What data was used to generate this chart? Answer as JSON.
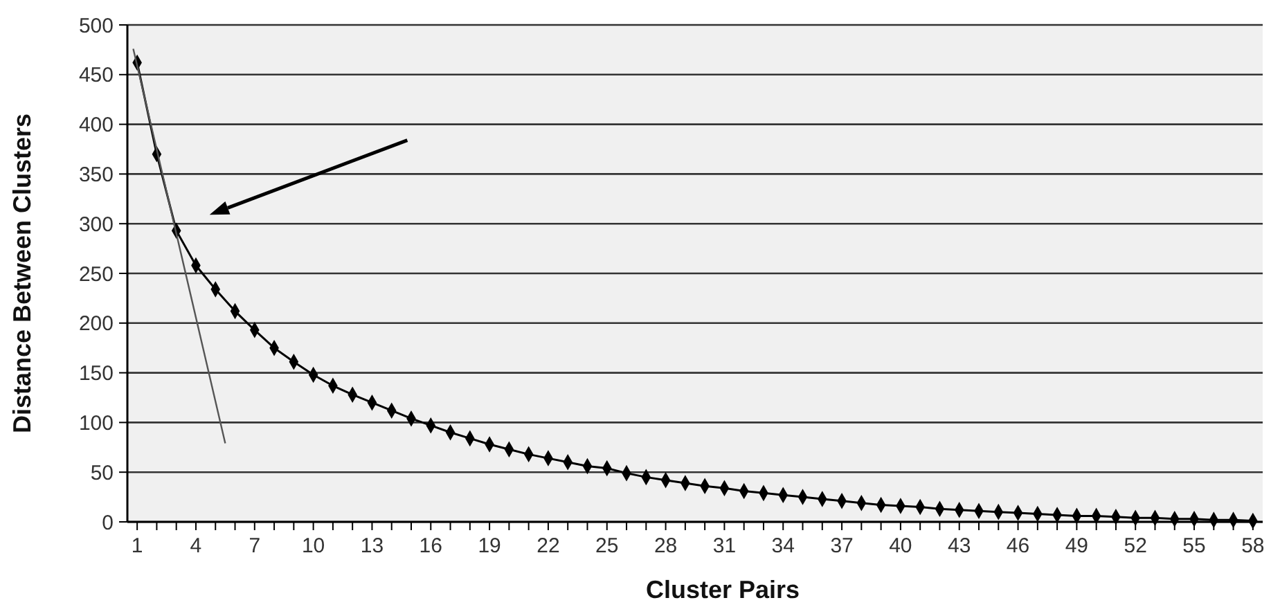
{
  "chart_data": {
    "type": "line",
    "xlabel": "Cluster Pairs",
    "ylabel": "Distance Between Clusters",
    "xlim": [
      0.5,
      58.5
    ],
    "xticks": [
      1,
      {
        "value": 2,
        "label": null
      },
      {
        "value": 3,
        "label": null
      },
      4,
      {
        "value": 5,
        "label": null
      },
      {
        "value": 6,
        "label": null
      },
      7,
      {
        "value": 8,
        "label": null
      },
      {
        "value": 9,
        "label": null
      },
      10,
      {
        "value": 11,
        "label": null
      },
      {
        "value": 12,
        "label": null
      },
      13,
      {
        "value": 14,
        "label": null
      },
      {
        "value": 15,
        "label": null
      },
      16,
      {
        "value": 17,
        "label": null
      },
      {
        "value": 18,
        "label": null
      },
      19,
      {
        "value": 20,
        "label": null
      },
      {
        "value": 21,
        "label": null
      },
      22,
      {
        "value": 23,
        "label": null
      },
      {
        "value": 24,
        "label": null
      },
      25,
      {
        "value": 26,
        "label": null
      },
      {
        "value": 27,
        "label": null
      },
      28,
      {
        "value": 29,
        "label": null
      },
      {
        "value": 30,
        "label": null
      },
      31,
      {
        "value": 32,
        "label": null
      },
      {
        "value": 33,
        "label": null
      },
      34,
      {
        "value": 35,
        "label": null
      },
      {
        "value": 36,
        "label": null
      },
      37,
      {
        "value": 38,
        "label": null
      },
      {
        "value": 39,
        "label": null
      },
      40,
      {
        "value": 41,
        "label": null
      },
      {
        "value": 42,
        "label": null
      },
      43,
      {
        "value": 44,
        "label": null
      },
      {
        "value": 45,
        "label": null
      },
      46,
      {
        "value": 47,
        "label": null
      },
      {
        "value": 48,
        "label": null
      },
      49,
      {
        "value": 50,
        "label": null
      },
      {
        "value": 51,
        "label": null
      },
      52,
      {
        "value": 53,
        "label": null
      },
      {
        "value": 54,
        "label": null
      },
      55,
      {
        "value": 56,
        "label": null
      },
      {
        "value": 57,
        "label": null
      },
      58
    ],
    "ylim": [
      0,
      500
    ],
    "yticks": [
      0,
      50,
      100,
      150,
      200,
      250,
      300,
      350,
      400,
      450,
      500
    ],
    "grid": "y",
    "series": [
      {
        "color": "#000000",
        "marker": "diamond",
        "line_style": "solid",
        "x": [
          1,
          2,
          3,
          4,
          5,
          6,
          7,
          8,
          9,
          10,
          11,
          12,
          13,
          14,
          15,
          16,
          17,
          18,
          19,
          20,
          21,
          22,
          23,
          24,
          25,
          26,
          27,
          28,
          29,
          30,
          31,
          32,
          33,
          34,
          35,
          36,
          37,
          38,
          39,
          40,
          41,
          42,
          43,
          44,
          45,
          46,
          47,
          48,
          49,
          50,
          51,
          52,
          53,
          54,
          55,
          56,
          57,
          58
        ],
        "values": [
          462,
          370,
          293,
          258,
          234,
          212,
          193,
          175,
          161,
          148,
          137,
          128,
          120,
          112,
          104,
          97,
          90,
          84,
          78,
          73,
          68,
          64,
          60,
          56,
          54,
          49,
          45,
          42,
          39,
          36,
          34,
          31,
          29,
          27,
          25,
          23,
          21,
          19,
          17,
          16,
          15,
          13,
          12,
          11,
          10,
          9,
          8,
          7,
          6,
          6,
          5,
          4,
          4,
          3,
          3,
          2,
          2,
          1
        ]
      },
      {
        "type": "line",
        "color": "#555555",
        "marker": "none",
        "line_style": "solid",
        "x": [
          0.8,
          5.5
        ],
        "values": [
          476,
          79
        ]
      }
    ]
  }
}
